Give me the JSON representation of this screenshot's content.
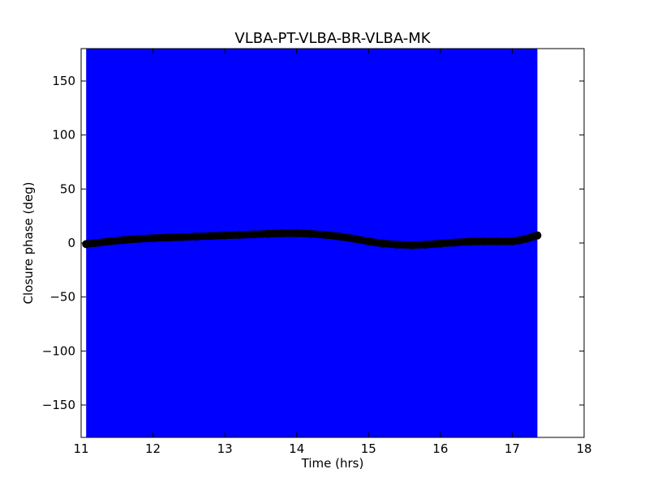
{
  "chart_data": {
    "type": "scatter",
    "title": "VLBA-PT-VLBA-BR-VLBA-MK",
    "xlabel": "Time (hrs)",
    "ylabel": "Closure phase (deg)",
    "xlim": [
      11,
      18
    ],
    "ylim": [
      -180,
      180
    ],
    "xticks": [
      11,
      12,
      13,
      14,
      15,
      16,
      17,
      18
    ],
    "yticks": [
      -150,
      -100,
      -50,
      0,
      50,
      100,
      150
    ],
    "ytick_labels": [
      "−150",
      "−100",
      "−50",
      "0",
      "50",
      "100",
      "150"
    ],
    "grid": false,
    "shaded_region": {
      "x": [
        11.07,
        17.35
      ],
      "y": [
        -180,
        180
      ],
      "color": "#0000ff"
    },
    "series": [
      {
        "marker": "circle",
        "color": "#000000",
        "x": [
          11.07,
          11.2,
          11.4,
          11.6,
          11.8,
          12.0,
          12.2,
          12.4,
          12.6,
          12.8,
          13.0,
          13.2,
          13.4,
          13.6,
          13.8,
          14.0,
          14.2,
          14.4,
          14.6,
          14.8,
          15.0,
          15.2,
          15.4,
          15.6,
          15.8,
          16.0,
          16.2,
          16.4,
          16.6,
          16.8,
          17.0,
          17.1,
          17.2,
          17.3,
          17.35
        ],
        "y": [
          -1,
          0,
          1.5,
          2.8,
          3.8,
          4.5,
          5.0,
          5.5,
          6.0,
          6.5,
          7.0,
          7.5,
          8.0,
          8.5,
          9.0,
          9.0,
          8.5,
          7.5,
          6.0,
          4.0,
          1.5,
          -0.5,
          -1.5,
          -2.0,
          -1.5,
          -0.5,
          0.5,
          1.2,
          1.5,
          1.5,
          1.5,
          2.5,
          4.0,
          6.0,
          7.0
        ]
      }
    ]
  }
}
